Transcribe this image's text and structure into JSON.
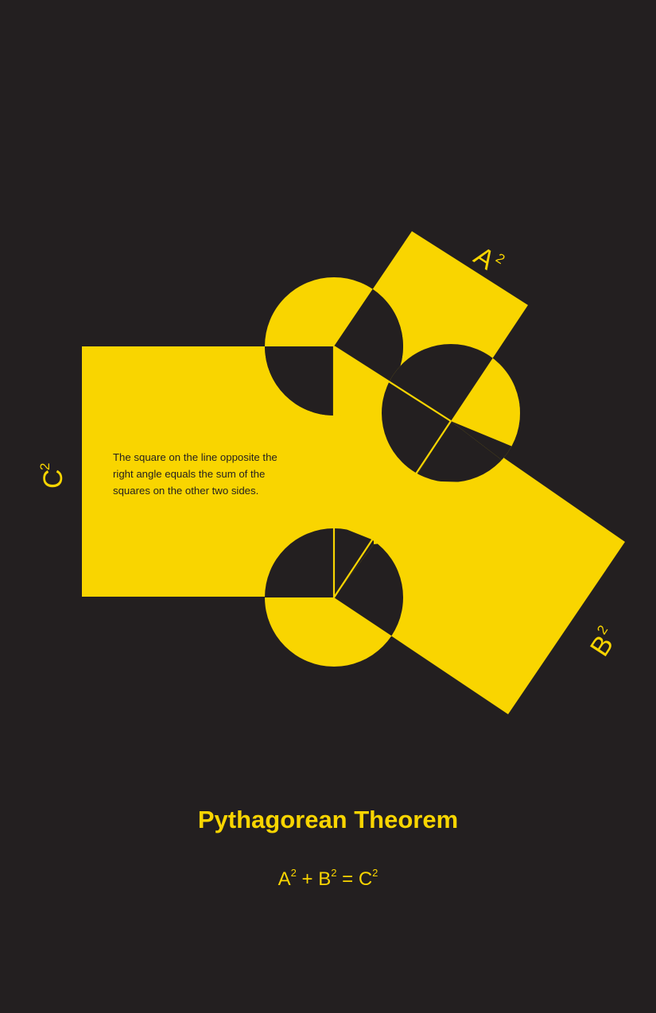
{
  "colors": {
    "background": "#231f20",
    "accent": "#f9d500"
  },
  "labels": {
    "a_base": "A",
    "b_base": "B",
    "c_base": "C",
    "exponent": "2"
  },
  "description": {
    "line1": "The square on the line opposite the",
    "line2": "right angle equals the sum of the",
    "line3": "squares on the other two sides."
  },
  "title": "Pythagorean Theorem",
  "equation": {
    "a": "A",
    "plus": "+",
    "b": "B",
    "equals": "=",
    "c": "C",
    "exp": "2"
  }
}
